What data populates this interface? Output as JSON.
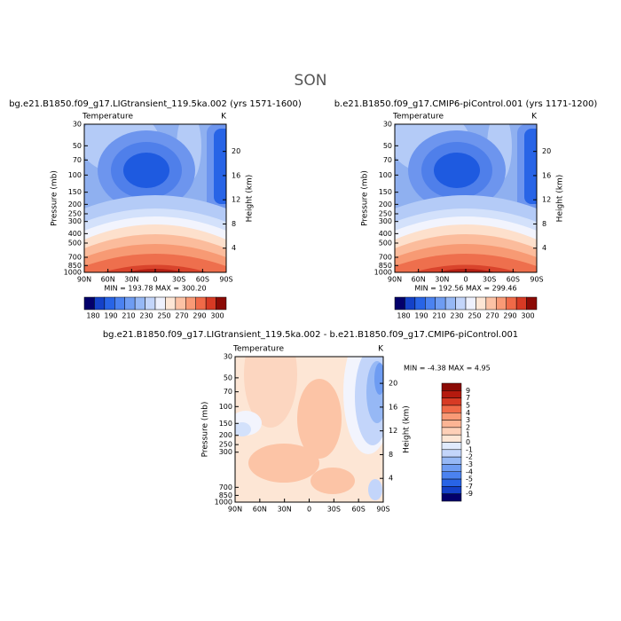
{
  "title": "SON",
  "chart_data": [
    {
      "type": "contour",
      "title": "bg.e21.B1850.f09_g17.LIGtransient_119.5ka.002 (yrs 1571-1600)",
      "field": "Temperature",
      "units": "K",
      "ylabel": "Pressure (mb)",
      "y2label": "Height (km)",
      "xlim": [
        90,
        -90
      ],
      "xticks": [
        {
          "value": 90,
          "label": "90N"
        },
        {
          "value": 60,
          "label": "60N"
        },
        {
          "value": 30,
          "label": "30N"
        },
        0,
        {
          "value": -30,
          "label": "30S"
        },
        {
          "value": -60,
          "label": "60S"
        },
        {
          "value": -90,
          "label": "90S"
        }
      ],
      "ylim": [
        30,
        1000
      ],
      "log": true,
      "yticks": [
        30,
        50,
        70,
        100,
        150,
        200,
        250,
        300,
        400,
        500,
        700,
        850,
        1000
      ],
      "y2lim": [
        24.5,
        0
      ],
      "y2ticks": [
        20,
        16,
        12,
        8,
        4
      ],
      "min_max": "MIN = 193.78   MAX = 300.20",
      "colorbar": {
        "labels": [
          "180",
          "190",
          "210",
          "230",
          "250",
          "270",
          "290",
          "300"
        ],
        "colors": [
          "#03006b",
          "#1441c8",
          "#2864e6",
          "#4b82f0",
          "#6e9cf2",
          "#96b8f5",
          "#c3d5fa",
          "#eef1fd",
          "#fde6d5",
          "#fcc2a5",
          "#f99a76",
          "#f06a48",
          "#d73a24",
          "#8b0a05"
        ]
      }
    },
    {
      "type": "contour",
      "title": "b.e21.B1850.f09_g17.CMIP6-piControl.001 (yrs 1171-1200)",
      "field": "Temperature",
      "units": "K",
      "ylabel": "Pressure (mb)",
      "y2label": "Height (km)",
      "xlim": [
        90,
        -90
      ],
      "xticks": [
        {
          "value": 90,
          "label": "90N"
        },
        {
          "value": 60,
          "label": "60N"
        },
        {
          "value": 30,
          "label": "30N"
        },
        0,
        {
          "value": -30,
          "label": "30S"
        },
        {
          "value": -60,
          "label": "60S"
        },
        {
          "value": -90,
          "label": "90S"
        }
      ],
      "ylim": [
        30,
        1000
      ],
      "log": true,
      "yticks": [
        30,
        50,
        70,
        100,
        150,
        200,
        250,
        300,
        400,
        500,
        700,
        850,
        1000
      ],
      "y2lim": [
        24.5,
        0
      ],
      "y2ticks": [
        20,
        16,
        12,
        8,
        4
      ],
      "min_max": "MIN = 192.56   MAX = 299.46",
      "colorbar": {
        "labels": [
          "180",
          "190",
          "210",
          "230",
          "250",
          "270",
          "290",
          "300"
        ],
        "colors": [
          "#03006b",
          "#1441c8",
          "#2864e6",
          "#4b82f0",
          "#6e9cf2",
          "#96b8f5",
          "#c3d5fa",
          "#eef1fd",
          "#fde6d5",
          "#fcc2a5",
          "#f99a76",
          "#f06a48",
          "#d73a24",
          "#8b0a05"
        ]
      }
    },
    {
      "type": "contour",
      "title": "bg.e21.B1850.f09_g17.LIGtransient_119.5ka.002 - b.e21.B1850.f09_g17.CMIP6-piControl.001",
      "field": "Temperature",
      "units": "K",
      "ylabel": "Pressure (mb)",
      "y2label": "Height (km)",
      "xlim": [
        90,
        -90
      ],
      "xticks": [
        {
          "value": 90,
          "label": "90N"
        },
        {
          "value": 60,
          "label": "60N"
        },
        {
          "value": 30,
          "label": "30N"
        },
        0,
        {
          "value": -30,
          "label": "30S"
        },
        {
          "value": -60,
          "label": "60S"
        },
        {
          "value": -90,
          "label": "90S"
        }
      ],
      "ylim": [
        30,
        1000
      ],
      "log": true,
      "yticks": [
        30,
        50,
        70,
        100,
        150,
        200,
        250,
        300,
        700,
        850,
        1000
      ],
      "y2lim": [
        24.5,
        0
      ],
      "y2ticks": [
        20,
        16,
        12,
        8,
        4
      ],
      "min_max": "MIN =  -4.38   MAX =   4.95",
      "colorbar": {
        "labels": [
          "9",
          "7",
          "5",
          "4",
          "3",
          "2",
          "1",
          "0",
          "-1",
          "-2",
          "-3",
          "-4",
          "-5",
          "-7",
          "-9"
        ],
        "colors": [
          "#8b0a05",
          "#b51a0e",
          "#d73a24",
          "#f06a48",
          "#f99a76",
          "#fcb494",
          "#fdd0b8",
          "#fde6d5",
          "#e0eafc",
          "#c3d5fa",
          "#96b8f5",
          "#6e9cf2",
          "#4b82f0",
          "#2864e6",
          "#1441c8",
          "#03006b"
        ]
      }
    }
  ]
}
